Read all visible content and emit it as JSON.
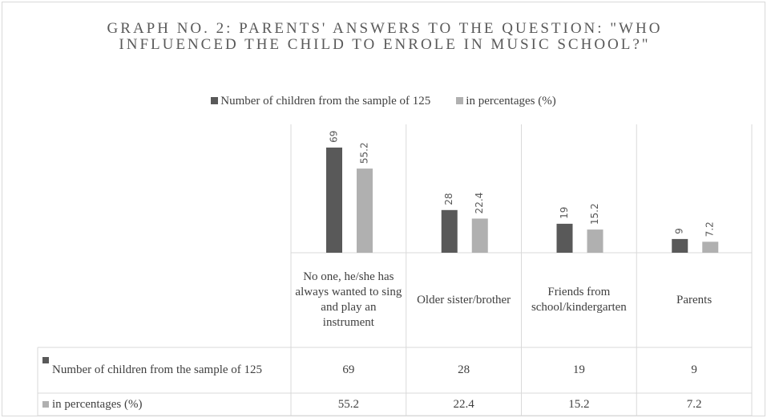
{
  "chart_data": {
    "type": "bar",
    "title": "GRAPH NO. 2: PARENTS' ANSWERS TO THE QUESTION: \"WHO INFLUENCED THE CHILD TO ENROLE IN MUSIC SCHOOL?\"",
    "categories": [
      "No one, he/she has always wanted to sing and play an instrument",
      "Older sister/brother",
      "Friends from school/kindergarten",
      "Parents"
    ],
    "series": [
      {
        "name": "Number of children from the sample of 125",
        "color": "#595959",
        "values": [
          69,
          28,
          19,
          9
        ]
      },
      {
        "name": "in percentages (%)",
        "color": "#b0b0b0",
        "values": [
          55.2,
          22.4,
          15.2,
          7.2
        ]
      }
    ],
    "ylim": [
      0,
      80
    ],
    "legend": "top"
  }
}
